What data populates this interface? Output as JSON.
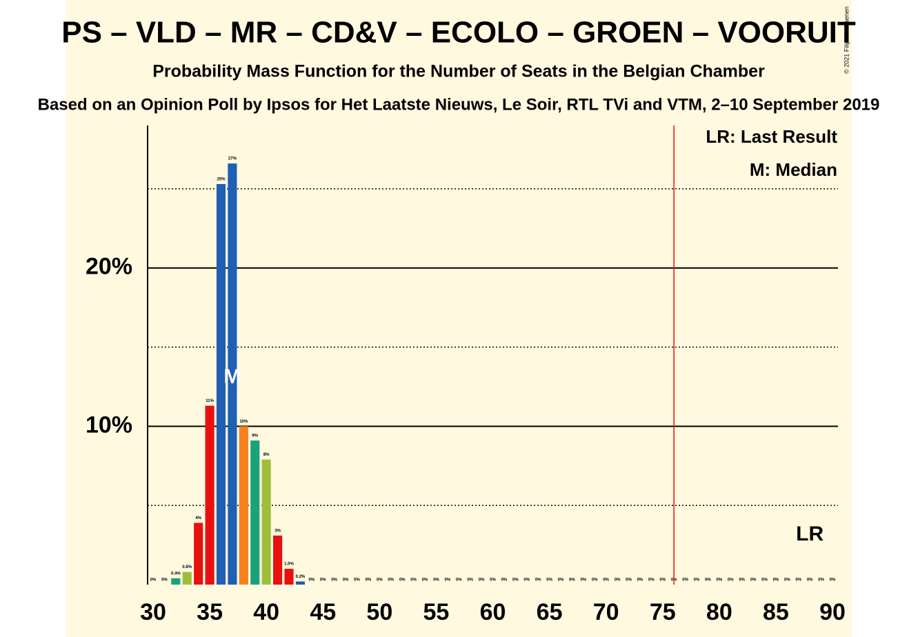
{
  "chart_data": {
    "type": "bar",
    "title": "PS – VLD – MR – CD&V – ECOLO – GROEN – VOORUIT",
    "subtitle": "Probability Mass Function for the Number of Seats in the Belgian Chamber",
    "source": "Based on an Opinion Poll by Ipsos for Het Laatste Nieuws, Le Soir, RTL TVi and VTM, 2–10 September 2019",
    "copyright": "© 2021 Filip van Laenen",
    "x": [
      30,
      31,
      32,
      33,
      34,
      35,
      36,
      37,
      38,
      39,
      40,
      41,
      42,
      43,
      44,
      45,
      46,
      47,
      48,
      49,
      50,
      51,
      52,
      53,
      54,
      55,
      56,
      57,
      58,
      59,
      60,
      61,
      62,
      63,
      64,
      65,
      66,
      67,
      68,
      69,
      70,
      71,
      72,
      73,
      74,
      75,
      76,
      77,
      78,
      79,
      80,
      81,
      82,
      83,
      84,
      85,
      86,
      87,
      88,
      89,
      90
    ],
    "values": [
      0,
      0,
      0.4,
      0.8,
      3.9,
      11.3,
      25.3,
      26.6,
      10.0,
      9.1,
      7.9,
      3.1,
      1.0,
      0.2,
      0,
      0,
      0,
      0,
      0,
      0,
      0,
      0,
      0,
      0,
      0,
      0,
      0,
      0,
      0,
      0,
      0,
      0,
      0,
      0,
      0,
      0,
      0,
      0,
      0,
      0,
      0,
      0,
      0,
      0,
      0,
      0,
      0,
      0,
      0,
      0,
      0,
      0,
      0,
      0,
      0,
      0,
      0,
      0,
      0,
      0,
      0
    ],
    "value_labels": [
      "0%",
      "0%",
      "0.4%",
      "0.8%",
      "4%",
      "11%",
      "25%",
      "27%",
      "10%",
      "9%",
      "8%",
      "3%",
      "1.0%",
      "0.2%",
      "0%",
      "0%",
      "0%",
      "0%",
      "0%",
      "0%",
      "0%",
      "0%",
      "0%",
      "0%",
      "0%",
      "0%",
      "0%",
      "0%",
      "0%",
      "0%",
      "0%",
      "0%",
      "0%",
      "0%",
      "0%",
      "0%",
      "0%",
      "0%",
      "0%",
      "0%",
      "0%",
      "0%",
      "0%",
      "0%",
      "0%",
      "0%",
      "0%",
      "0%",
      "0%",
      "0%",
      "0%",
      "0%",
      "0%",
      "0%",
      "0%",
      "0%",
      "0%",
      "0%",
      "0%",
      "0%",
      "0%"
    ],
    "colors": [
      null,
      null,
      "#1aa37a",
      "#9fbf3b",
      "#e8110f",
      "#e8110f",
      "#1f5fb4",
      "#1f5fb4",
      "#f5821f",
      "#1aa37a",
      "#9fbf3b",
      "#e8110f",
      "#e8110f",
      "#1f5fb4",
      null,
      null,
      null,
      null,
      null,
      null,
      null,
      null,
      null,
      null,
      null,
      null,
      null,
      null,
      null,
      null,
      null,
      null,
      null,
      null,
      null,
      null,
      null,
      null,
      null,
      null,
      null,
      null,
      null,
      null,
      null,
      null,
      null,
      null,
      null,
      null,
      null,
      null,
      null,
      null,
      null,
      null,
      null,
      null,
      null,
      null,
      null
    ],
    "xlim": [
      30,
      90
    ],
    "xticks": [
      30,
      35,
      40,
      45,
      50,
      55,
      60,
      65,
      70,
      75,
      80,
      85,
      90
    ],
    "ylim": [
      0,
      29
    ],
    "yticks": [
      {
        "value": 10,
        "label": "10%"
      },
      {
        "value": 20,
        "label": "20%"
      }
    ],
    "minor_grid": [
      5,
      15,
      25
    ],
    "majority": 76,
    "median": 37,
    "median_label": "M",
    "last_result": 88,
    "last_result_label": "LR",
    "legend": [
      "LR: Last Result",
      "M: Median"
    ]
  }
}
